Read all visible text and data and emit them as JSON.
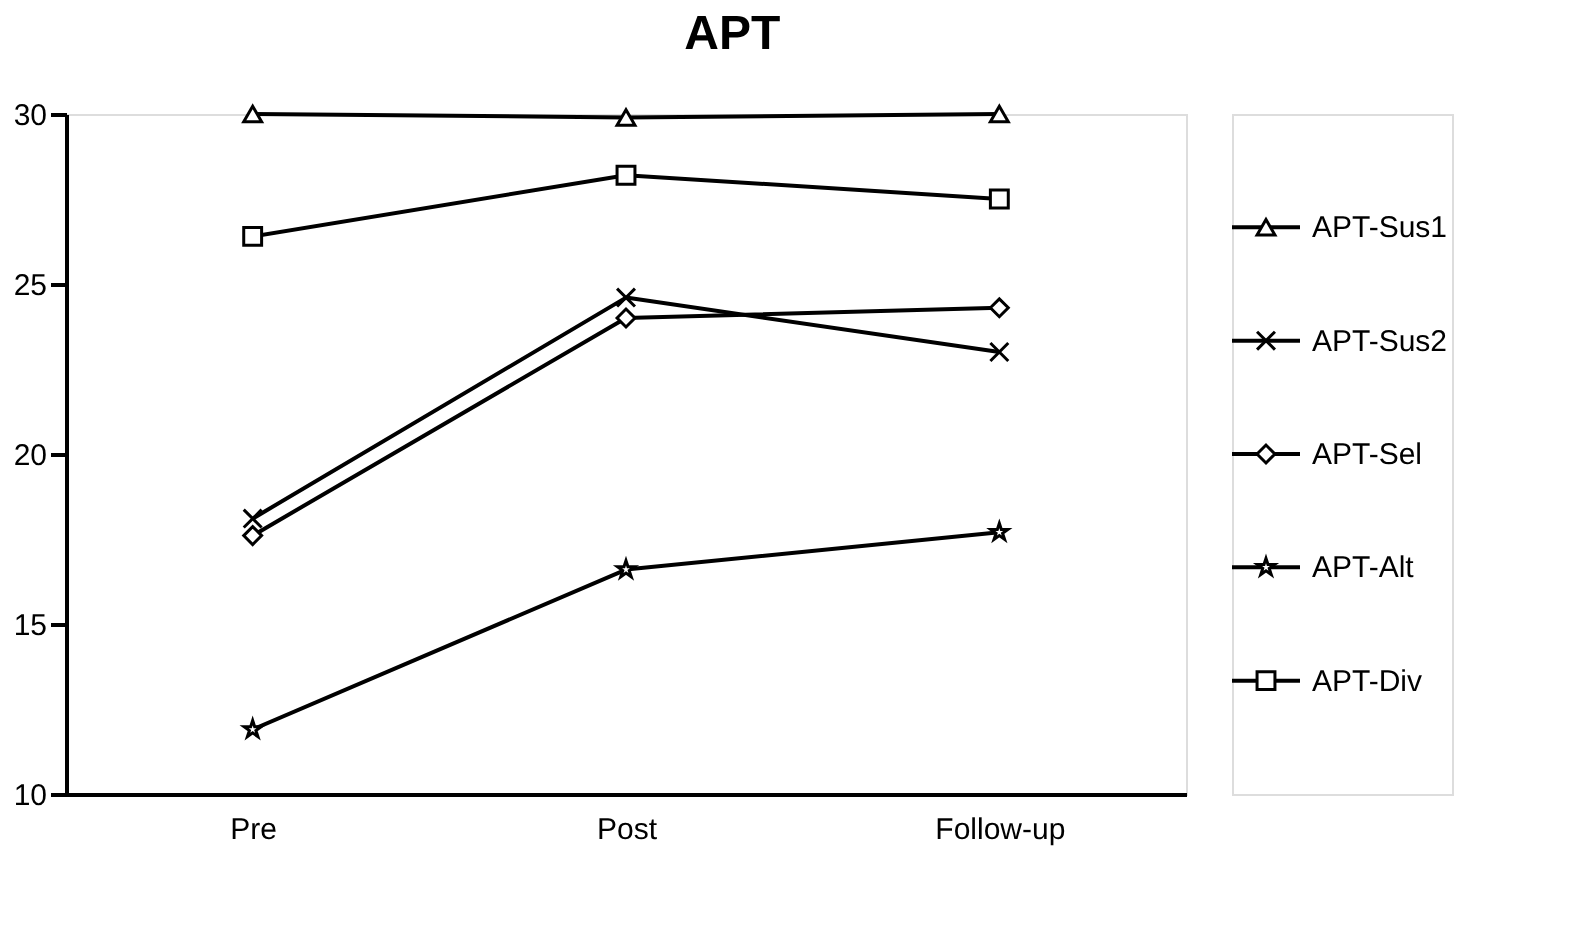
{
  "chart_data": {
    "type": "line",
    "title": "APT",
    "categories": [
      "Pre",
      "Post",
      "Follow-up"
    ],
    "series": [
      {
        "name": "APT-Sus1",
        "color": "#000000",
        "marker": "triangle",
        "values": [
          30.0,
          29.9,
          30.0
        ]
      },
      {
        "name": "APT-Sus2",
        "color": "#000000",
        "marker": "cross",
        "values": [
          18.1,
          24.6,
          23.0
        ]
      },
      {
        "name": "APT-Sel",
        "color": "#000000",
        "marker": "diamond",
        "values": [
          17.6,
          24.0,
          24.3
        ]
      },
      {
        "name": "APT-Alt",
        "color": "#000000",
        "marker": "star",
        "values": [
          11.9,
          16.6,
          17.7
        ]
      },
      {
        "name": "APT-Div",
        "color": "#000000",
        "marker": "square",
        "values": [
          26.4,
          28.2,
          27.5
        ]
      }
    ],
    "ylim": [
      10,
      30
    ],
    "yticks": [
      10,
      15,
      20,
      25,
      30
    ],
    "grid": false,
    "legend": "right",
    "line_style": "solid"
  }
}
